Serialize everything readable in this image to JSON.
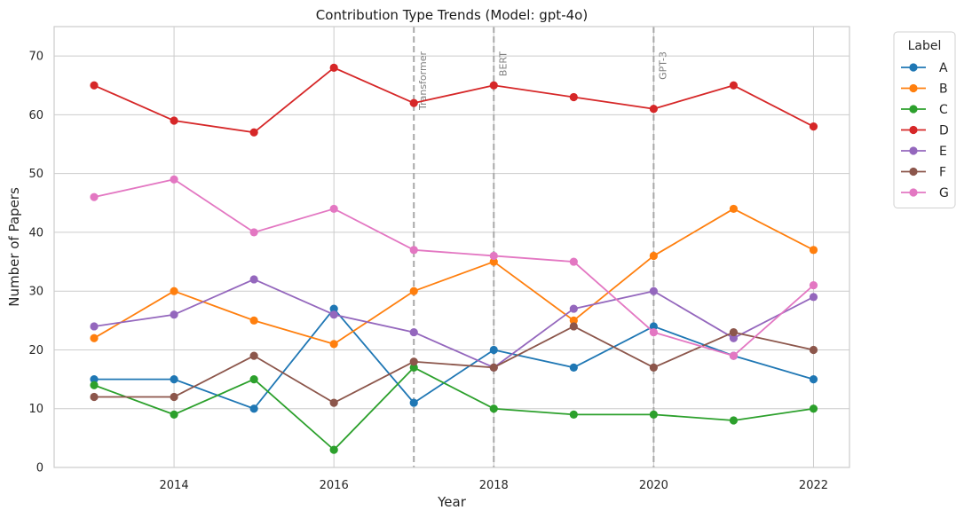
{
  "chart_data": {
    "type": "line",
    "title": "Contribution Type Trends (Model: gpt-4o)",
    "xlabel": "Year",
    "ylabel": "Number of Papers",
    "x": [
      2013,
      2014,
      2015,
      2016,
      2017,
      2018,
      2019,
      2020,
      2021,
      2022
    ],
    "xlim": [
      2012.5,
      2022.45
    ],
    "ylim": [
      0,
      75
    ],
    "x_ticks": [
      2014,
      2016,
      2018,
      2020,
      2022
    ],
    "y_ticks": [
      0,
      10,
      20,
      30,
      40,
      50,
      60,
      70
    ],
    "grid": true,
    "legend": {
      "title": "Label",
      "placement": "outside-top-right"
    },
    "series": [
      {
        "name": "A",
        "color": "#1f77b4",
        "values": [
          15,
          15,
          10,
          27,
          11,
          20,
          17,
          24,
          19,
          15
        ]
      },
      {
        "name": "B",
        "color": "#ff7f0e",
        "values": [
          22,
          30,
          25,
          21,
          30,
          35,
          25,
          36,
          44,
          37
        ]
      },
      {
        "name": "C",
        "color": "#2ca02c",
        "values": [
          14,
          9,
          15,
          3,
          17,
          10,
          9,
          9,
          8,
          10
        ]
      },
      {
        "name": "D",
        "color": "#d62728",
        "values": [
          65,
          59,
          57,
          68,
          62,
          65,
          63,
          61,
          65,
          58
        ]
      },
      {
        "name": "E",
        "color": "#9467bd",
        "values": [
          24,
          26,
          32,
          26,
          23,
          17,
          27,
          30,
          22,
          29
        ]
      },
      {
        "name": "F",
        "color": "#8c564b",
        "values": [
          12,
          12,
          19,
          11,
          18,
          17,
          24,
          17,
          23,
          20
        ]
      },
      {
        "name": "G",
        "color": "#e377c2",
        "values": [
          46,
          49,
          40,
          44,
          37,
          36,
          35,
          23,
          19,
          31
        ]
      }
    ],
    "annotations": [
      {
        "x": 2017,
        "label": "Transformer"
      },
      {
        "x": 2018,
        "label": "BERT"
      },
      {
        "x": 2020,
        "label": "GPT-3"
      }
    ]
  }
}
